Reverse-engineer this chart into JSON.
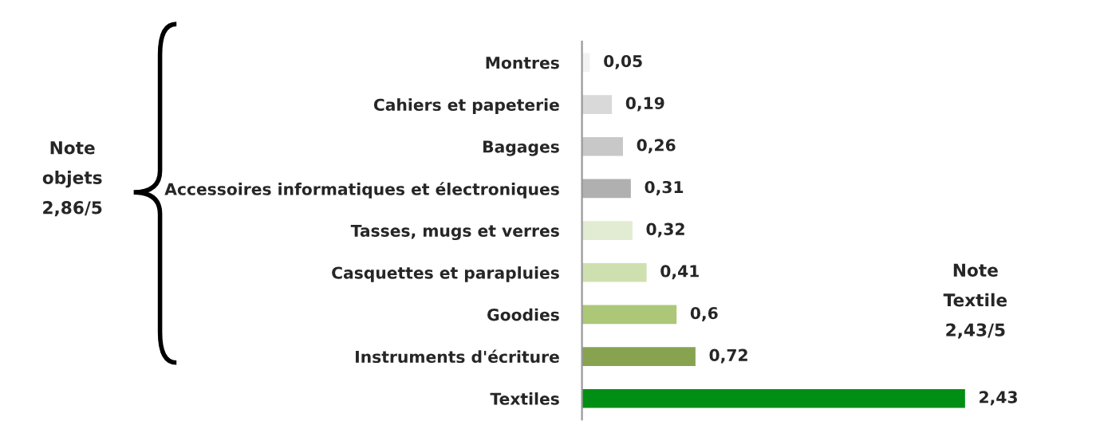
{
  "chart_data": {
    "type": "bar",
    "orientation": "horizontal",
    "categories": [
      "Montres",
      "Cahiers et papeterie",
      "Bagages",
      "Accessoires informatiques et électroniques",
      "Tasses, mugs et verres",
      "Casquettes et parapluies",
      "Goodies",
      "Instruments d'écriture",
      "Textiles"
    ],
    "values": [
      0.05,
      0.19,
      0.26,
      0.31,
      0.32,
      0.41,
      0.6,
      0.72,
      2.43
    ],
    "value_labels": [
      "0,05",
      "0,19",
      "0,26",
      "0,31",
      "0,32",
      "0,41",
      "0,6",
      "0,72",
      "2,43"
    ],
    "colors": [
      "#f2f2f2",
      "#d9d9d9",
      "#c8c8c8",
      "#b0b0b0",
      "#e2ecd2",
      "#cfe0b0",
      "#abc777",
      "#88a350",
      "#008f14"
    ],
    "tick_labels": "y",
    "grid": false,
    "legend": false,
    "annotations": [
      "Note\nobjets\n2,86/5",
      "Note\nTextile\n2,43/5"
    ]
  }
}
